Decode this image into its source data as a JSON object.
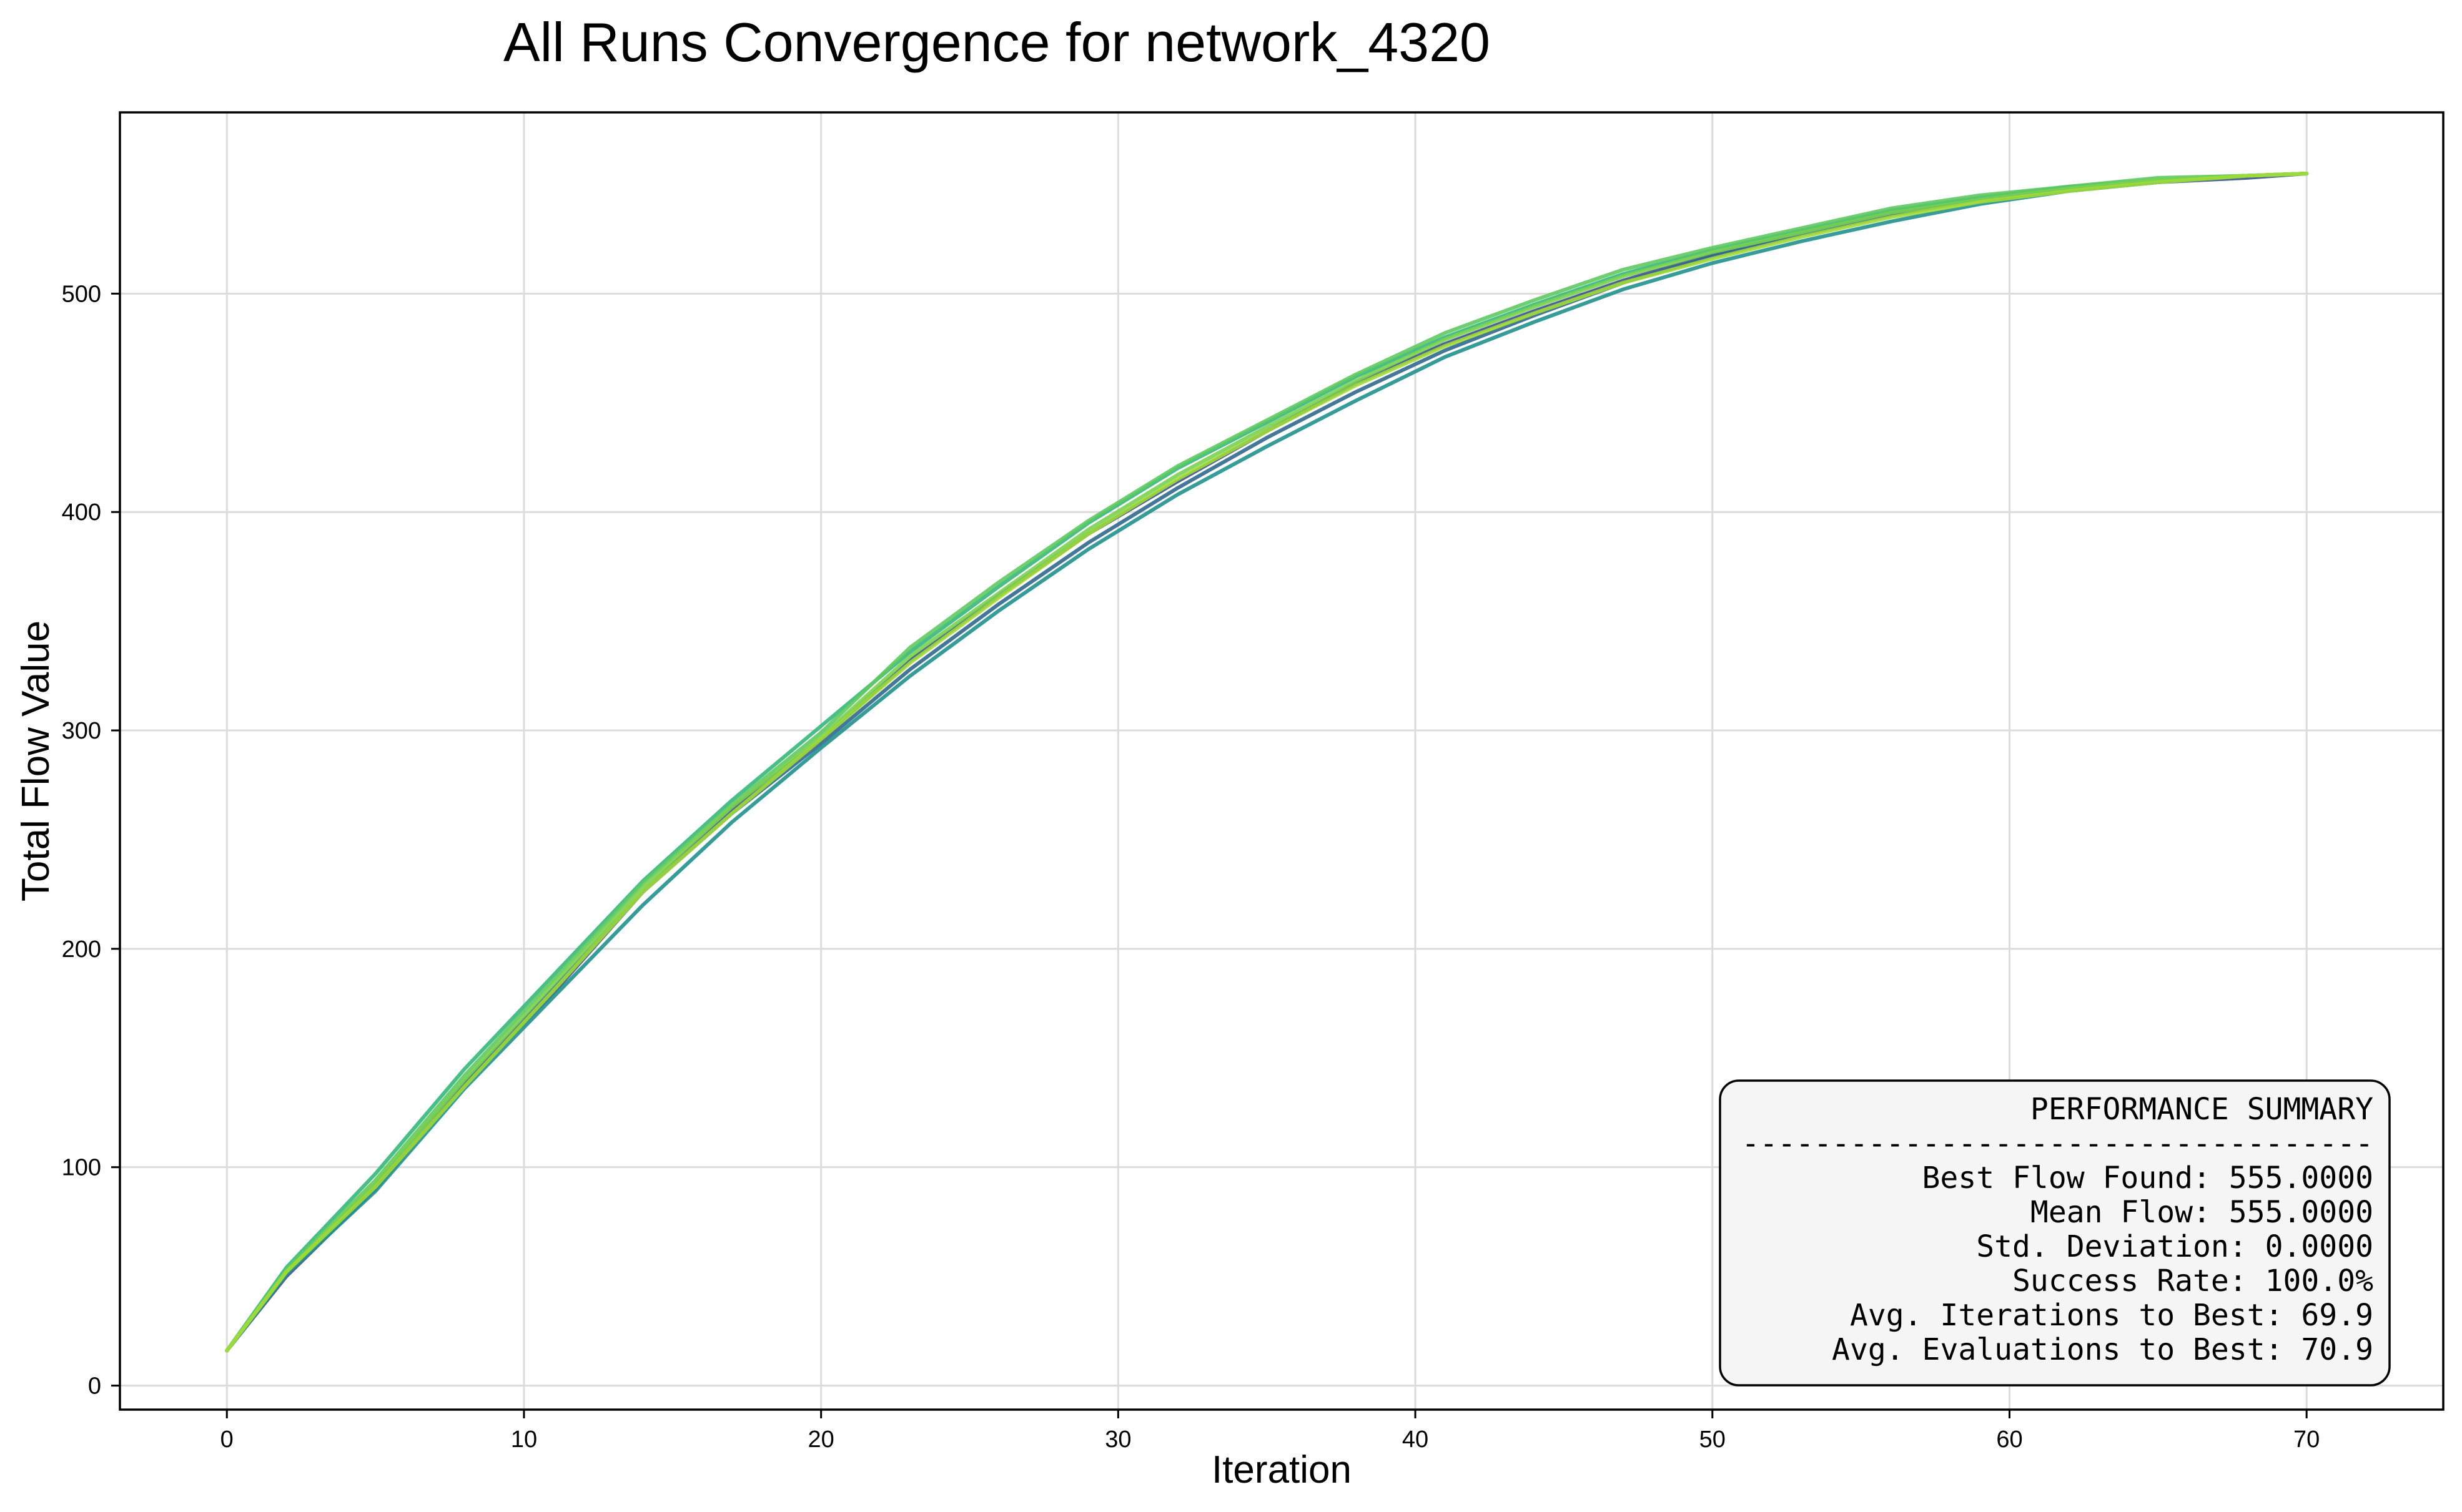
{
  "chart_data": {
    "type": "line",
    "title": "All Runs Convergence for network_4320",
    "xlabel": "Iteration",
    "ylabel": "Total Flow Value",
    "xlim": [
      -3.6,
      74.6
    ],
    "ylim": [
      -11,
      583
    ],
    "xticks": [
      0,
      10,
      20,
      30,
      40,
      50,
      60,
      70
    ],
    "yticks": [
      0,
      100,
      200,
      300,
      400,
      500
    ],
    "grid": true,
    "legend": "none",
    "series": [
      {
        "color": "#3b528b",
        "x": [
          0,
          2,
          5,
          8,
          11,
          14,
          17,
          20,
          23,
          26,
          29,
          32,
          35,
          38,
          41,
          44,
          47,
          50,
          53,
          56,
          59,
          62,
          65,
          68,
          70
        ],
        "y": [
          16,
          50,
          90,
          138,
          180,
          226,
          264,
          296,
          332,
          362,
          390,
          414,
          437,
          459,
          477,
          492,
          506,
          518,
          528,
          537,
          543,
          547,
          551,
          553,
          555
        ]
      },
      {
        "color": "#31688e",
        "x": [
          0,
          2,
          5,
          8,
          11,
          14,
          17,
          20,
          23,
          26,
          29,
          32,
          35,
          38,
          41,
          44,
          47,
          50,
          53,
          56,
          59,
          62,
          65,
          68,
          70
        ],
        "y": [
          16,
          52,
          92,
          139,
          182,
          226,
          262,
          294,
          328,
          358,
          386,
          411,
          434,
          455,
          474,
          490,
          505,
          517,
          527,
          536,
          543,
          548,
          552,
          554,
          555
        ]
      },
      {
        "color": "#21918c",
        "x": [
          0,
          2,
          5,
          8,
          11,
          14,
          17,
          20,
          23,
          26,
          29,
          32,
          35,
          38,
          41,
          44,
          47,
          50,
          53,
          56,
          59,
          62,
          65,
          68,
          70
        ],
        "y": [
          16,
          51,
          89,
          136,
          178,
          220,
          258,
          292,
          325,
          355,
          383,
          408,
          430,
          451,
          471,
          487,
          502,
          514,
          524,
          533,
          541,
          547,
          551,
          554,
          555
        ]
      },
      {
        "color": "#35b779",
        "x": [
          0,
          2,
          5,
          8,
          11,
          14,
          17,
          20,
          23,
          26,
          29,
          32,
          35,
          38,
          41,
          44,
          47,
          50,
          53,
          56,
          59,
          62,
          65,
          68,
          70
        ],
        "y": [
          16,
          54,
          97,
          145,
          188,
          231,
          268,
          302,
          336,
          366,
          395,
          420,
          441,
          462,
          480,
          495,
          509,
          520,
          529,
          538,
          544,
          549,
          552,
          554,
          555
        ]
      },
      {
        "color": "#5ec962",
        "x": [
          0,
          2,
          5,
          8,
          11,
          14,
          17,
          20,
          23,
          26,
          29,
          32,
          35,
          38,
          41,
          44,
          47,
          50,
          53,
          56,
          59,
          62,
          65,
          68,
          70
        ],
        "y": [
          16,
          53,
          94,
          142,
          186,
          230,
          266,
          299,
          338,
          368,
          396,
          421,
          442,
          463,
          482,
          497,
          511,
          521,
          530,
          539,
          545,
          549,
          553,
          554,
          555
        ]
      },
      {
        "color": "#7ad151",
        "x": [
          0,
          2,
          5,
          8,
          11,
          14,
          17,
          20,
          23,
          26,
          29,
          32,
          35,
          38,
          41,
          44,
          47,
          50,
          53,
          56,
          59,
          62,
          65,
          68,
          70
        ],
        "y": [
          16,
          52,
          93,
          140,
          184,
          228,
          265,
          297,
          334,
          363,
          392,
          417,
          439,
          460,
          479,
          494,
          508,
          519,
          528,
          537,
          543,
          548,
          552,
          554,
          555
        ]
      },
      {
        "color": "#a0da39",
        "x": [
          0,
          2,
          5,
          8,
          11,
          14,
          17,
          20,
          23,
          26,
          29,
          32,
          35,
          38,
          41,
          44,
          47,
          50,
          53,
          56,
          59,
          62,
          65,
          68,
          70
        ],
        "y": [
          16,
          52,
          91,
          137,
          181,
          226,
          262,
          296,
          331,
          361,
          390,
          415,
          437,
          458,
          476,
          491,
          505,
          516,
          526,
          535,
          542,
          547,
          551,
          554,
          555
        ]
      }
    ],
    "summary": {
      "heading": "PERFORMANCE SUMMARY",
      "separator": "-----------------------------------",
      "lines": [
        "Best Flow Found: 555.0000",
        "Mean Flow: 555.0000",
        "Std. Deviation: 0.0000",
        "Success Rate: 100.0%",
        "Avg. Iterations to Best: 69.9",
        "Avg. Evaluations to Best: 70.9"
      ],
      "placement": "lower-right"
    }
  }
}
